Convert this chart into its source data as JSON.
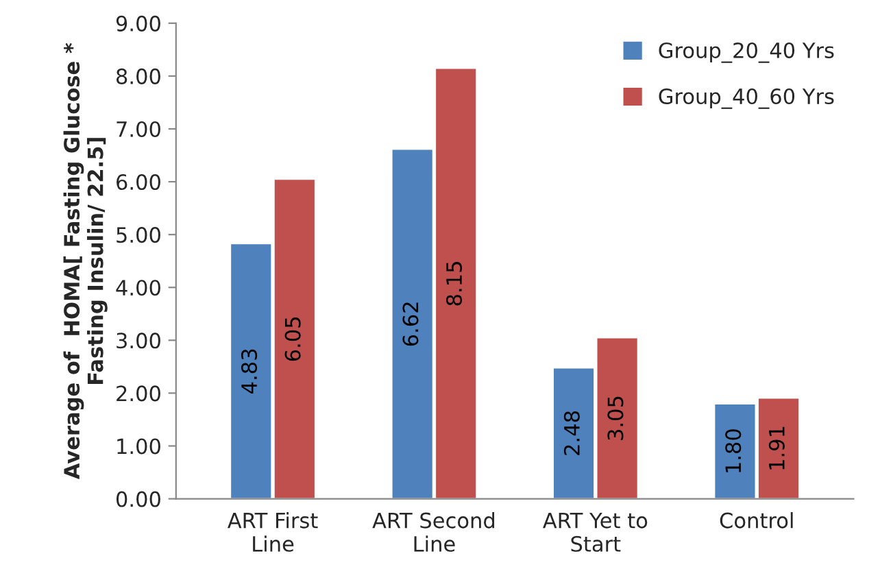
{
  "chart_data": {
    "type": "bar",
    "ylabel": "Average of  HOMA[ Fasting Glucose * Fasting Insulin/ 22.5]",
    "categories": [
      "ART First Line",
      "ART Second Line",
      "ART Yet to Start",
      "Control"
    ],
    "series": [
      {
        "name": "Group_20_40 Yrs",
        "color": "#4f81bd",
        "values": [
          4.83,
          6.62,
          2.48,
          1.8
        ],
        "value_labels": [
          "4.83",
          "6.62",
          "2.48",
          "1.80"
        ]
      },
      {
        "name": "Group_40_60 Yrs",
        "color": "#c0504d",
        "values": [
          6.05,
          8.15,
          3.05,
          1.91
        ],
        "value_labels": [
          "6.05",
          "8.15",
          "3.05",
          "1.91"
        ]
      }
    ],
    "ylim": [
      0,
      9
    ],
    "yticks": [
      {
        "value": 0,
        "label": "0.00"
      },
      {
        "value": 1,
        "label": "1.00"
      },
      {
        "value": 2,
        "label": "2.00"
      },
      {
        "value": 3,
        "label": "3.00"
      },
      {
        "value": 4,
        "label": "4.00"
      },
      {
        "value": 5,
        "label": "5.00"
      },
      {
        "value": 6,
        "label": "6.00"
      },
      {
        "value": 7,
        "label": "7.00"
      },
      {
        "value": 8,
        "label": "8.00"
      },
      {
        "value": 9,
        "label": "9.00"
      }
    ],
    "grid": false,
    "legend": "top right"
  }
}
